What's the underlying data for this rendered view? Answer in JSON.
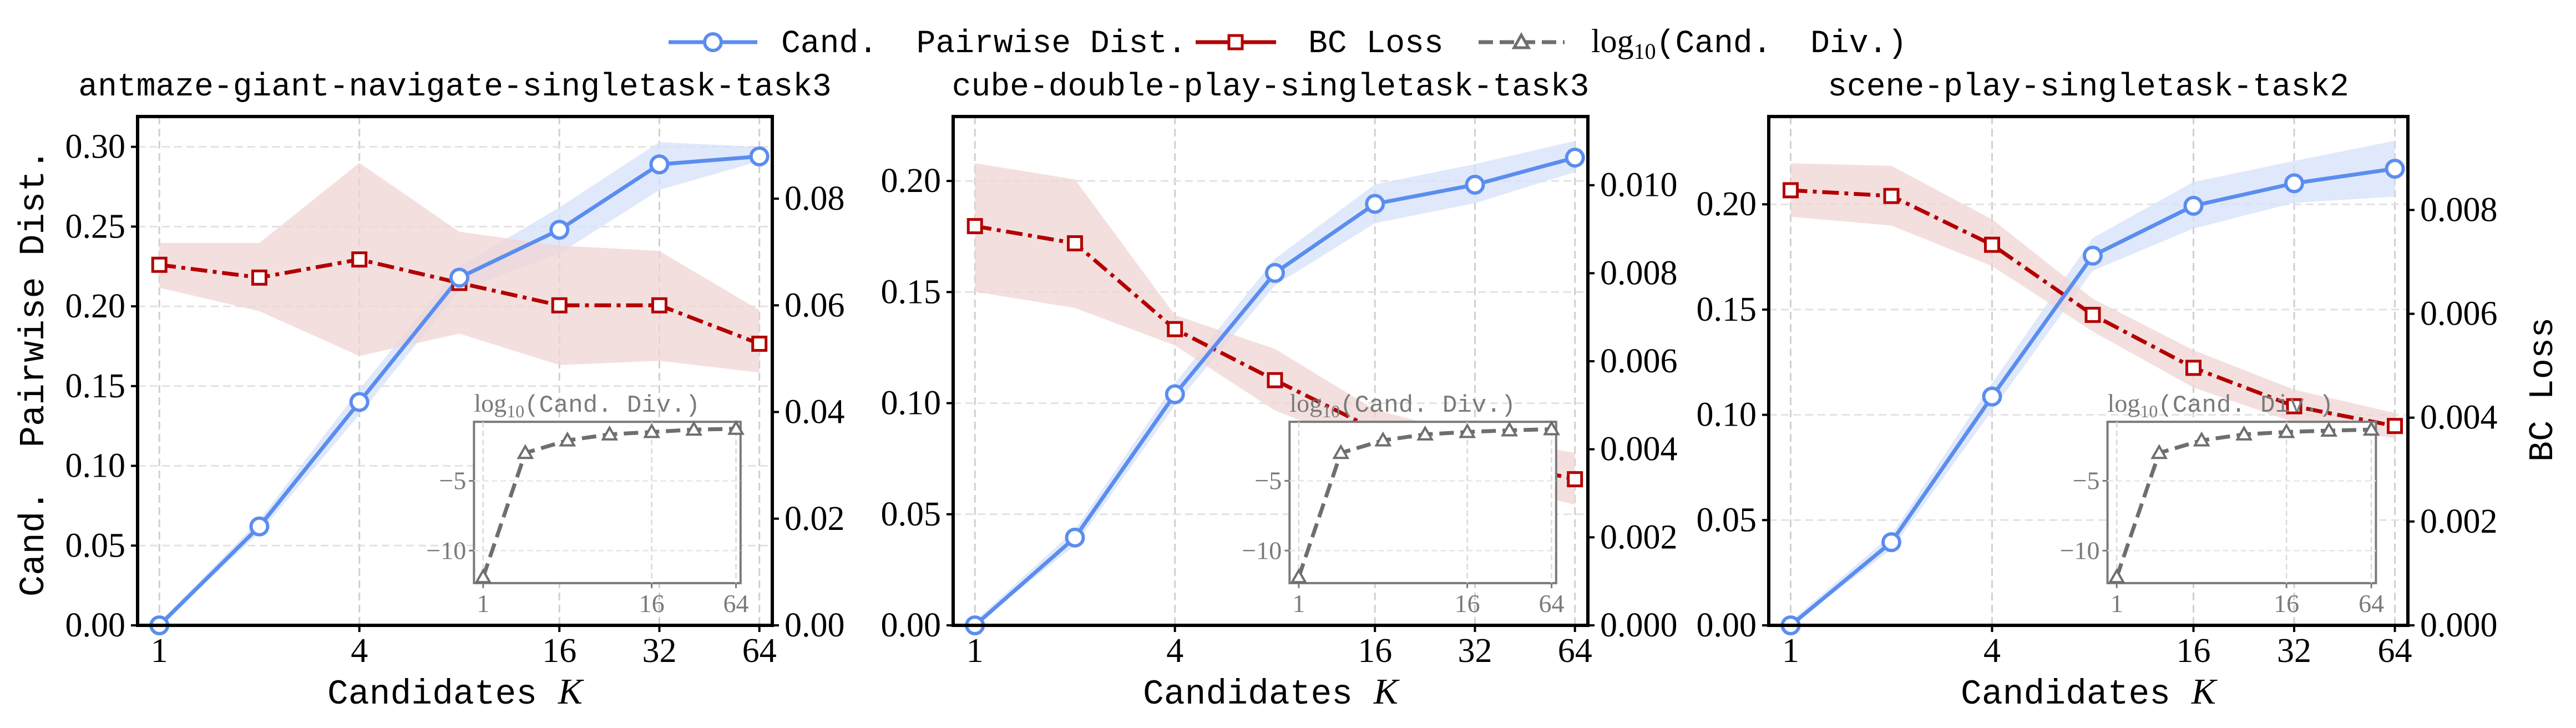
{
  "legend": {
    "placement": "top-center",
    "items": [
      {
        "label": "Cand.  Pairwise Dist.",
        "marker": "circle",
        "style": "solid"
      },
      {
        "label": "BC Loss",
        "marker": "square",
        "style": "dash-dot"
      },
      {
        "label_prefix": "log",
        "label_sub": "10",
        "label_rest": "(Cand.  Div.)",
        "marker": "triangle",
        "style": "dashed"
      }
    ]
  },
  "colors": {
    "pairwise": "#5b8def",
    "bc": "#b30000",
    "div": "#6e6e6e",
    "pairwise_band": "#d6e2f9",
    "bc_band": "#f0d4d4"
  },
  "ylabel_left": "Cand.  Pairwise Dist.",
  "ylabel_right": "BC Loss",
  "chart_data": [
    {
      "type": "line",
      "title": "antmaze-giant-navigate-singletask-task3",
      "xlabel_text": "Candidates",
      "xlabel_math": "K",
      "x": [
        1,
        2,
        4,
        8,
        16,
        32,
        64
      ],
      "xscale": "log2",
      "xticks": [
        1,
        4,
        16,
        32,
        64
      ],
      "xlim": [
        0.86,
        70
      ],
      "grid": true,
      "left_axis": {
        "ylim": [
          0,
          0.319
        ],
        "ticks": [
          "0.00",
          "0.05",
          "0.10",
          "0.15",
          "0.20",
          "0.25",
          "0.30"
        ]
      },
      "right_axis": {
        "ylim": [
          0,
          0.0954
        ],
        "ticks": [
          "0.00",
          "0.02",
          "0.04",
          "0.06",
          "0.08"
        ]
      },
      "series": [
        {
          "name": "Cand.  Pairwise Dist.",
          "axis": "left",
          "values": [
            0.0,
            0.062,
            0.14,
            0.218,
            0.248,
            0.289,
            0.294
          ],
          "lower": [
            0.0,
            0.058,
            0.132,
            0.21,
            0.233,
            0.273,
            0.291
          ],
          "upper": [
            0.002,
            0.066,
            0.148,
            0.225,
            0.262,
            0.303,
            0.3
          ]
        },
        {
          "name": "BC Loss",
          "axis": "right",
          "values": [
            0.0676,
            0.0652,
            0.0686,
            0.0642,
            0.06,
            0.06,
            0.0528
          ],
          "lower": [
            0.0633,
            0.0589,
            0.0505,
            0.0547,
            0.0488,
            0.0496,
            0.0474
          ],
          "upper": [
            0.0717,
            0.0717,
            0.0867,
            0.0738,
            0.0712,
            0.0702,
            0.0591
          ]
        }
      ],
      "inset": {
        "ylabel_prefix": "log",
        "ylabel_sub": "10",
        "ylabel_rest": "(Cand.  Div.)",
        "xticks": [
          1,
          16,
          64
        ],
        "xlim": [
          0.86,
          69
        ],
        "ylim": [
          -12.33,
          -0.77
        ],
        "yticks": [
          -5,
          -10
        ],
        "values": [
          -11.9,
          -3.0,
          -2.1,
          -1.67,
          -1.5,
          -1.33,
          -1.27
        ]
      }
    },
    {
      "type": "line",
      "title": "cube-double-play-singletask-task3",
      "xlabel_text": "Candidates",
      "xlabel_math": "K",
      "x": [
        1,
        2,
        4,
        8,
        16,
        32,
        64
      ],
      "xscale": "log2",
      "xticks": [
        1,
        4,
        16,
        32,
        64
      ],
      "xlim": [
        0.86,
        70
      ],
      "grid": true,
      "left_axis": {
        "ylim": [
          0,
          0.229
        ],
        "ticks": [
          "0.00",
          "0.05",
          "0.10",
          "0.15",
          "0.20"
        ]
      },
      "right_axis": {
        "ylim": [
          0,
          0.01156
        ],
        "ticks": [
          "0.000",
          "0.002",
          "0.004",
          "0.006",
          "0.008",
          "0.010"
        ]
      },
      "series": [
        {
          "name": "Cand.  Pairwise Dist.",
          "axis": "left",
          "values": [
            0.0,
            0.0395,
            0.104,
            0.1586,
            0.1897,
            0.1983,
            0.2105
          ],
          "lower": [
            0.0,
            0.036,
            0.099,
            0.153,
            0.181,
            0.19,
            0.204
          ],
          "upper": [
            0.002,
            0.043,
            0.109,
            0.165,
            0.1985,
            0.2076,
            0.218
          ]
        },
        {
          "name": "BC Loss",
          "axis": "right",
          "values": [
            0.00907,
            0.00868,
            0.00673,
            0.00557,
            0.00445,
            0.00382,
            0.00332
          ],
          "lower": [
            0.00758,
            0.00721,
            0.00636,
            0.00488,
            0.004,
            0.0033,
            0.00274
          ],
          "upper": [
            0.0105,
            0.01013,
            0.00705,
            0.00628,
            0.0049,
            0.0043,
            0.00392
          ]
        }
      ],
      "inset": {
        "ylabel_prefix": "log",
        "ylabel_sub": "10",
        "ylabel_rest": "(Cand.  Div.)",
        "xticks": [
          1,
          16,
          64
        ],
        "xlim": [
          0.86,
          69
        ],
        "ylim": [
          -12.33,
          -0.77
        ],
        "yticks": [
          -5,
          -10
        ],
        "values": [
          -11.9,
          -3.0,
          -2.1,
          -1.67,
          -1.5,
          -1.38,
          -1.3
        ]
      }
    },
    {
      "type": "line",
      "title": "scene-play-singletask-task2",
      "xlabel_text": "Candidates",
      "xlabel_math": "K",
      "x": [
        1,
        2,
        4,
        8,
        16,
        32,
        64
      ],
      "xscale": "log2",
      "xticks": [
        1,
        4,
        16,
        32,
        64
      ],
      "xlim": [
        0.86,
        70
      ],
      "grid": true,
      "left_axis": {
        "ylim": [
          0,
          0.2417
        ],
        "ticks": [
          "0.00",
          "0.05",
          "0.10",
          "0.15",
          "0.20"
        ]
      },
      "right_axis": {
        "ylim": [
          0,
          0.0098
        ],
        "ticks": [
          "0.000",
          "0.002",
          "0.004",
          "0.006",
          "0.008"
        ]
      },
      "series": [
        {
          "name": "Cand.  Pairwise Dist.",
          "axis": "left",
          "values": [
            0.0,
            0.0395,
            0.1087,
            0.1756,
            0.1993,
            0.21,
            0.2169
          ],
          "lower": [
            0.0,
            0.036,
            0.102,
            0.1685,
            0.1885,
            0.2007,
            0.2036
          ],
          "upper": [
            0.002,
            0.043,
            0.115,
            0.184,
            0.2106,
            0.2206,
            0.2302
          ]
        },
        {
          "name": "BC Loss",
          "axis": "right",
          "values": [
            0.00838,
            0.00827,
            0.00733,
            0.00598,
            0.00496,
            0.00422,
            0.00384
          ],
          "lower": [
            0.00787,
            0.0077,
            0.00692,
            0.00566,
            0.00458,
            0.00391,
            0.0036
          ],
          "upper": [
            0.0089,
            0.00885,
            0.00782,
            0.00629,
            0.0053,
            0.00454,
            0.00409
          ]
        }
      ],
      "inset": {
        "ylabel_prefix": "log",
        "ylabel_sub": "10",
        "ylabel_rest": "(Cand.  Div.)",
        "xticks": [
          1,
          16,
          64
        ],
        "xlim": [
          0.86,
          69
        ],
        "ylim": [
          -12.33,
          -0.77
        ],
        "yticks": [
          -5,
          -10
        ],
        "values": [
          -11.9,
          -3.0,
          -2.1,
          -1.67,
          -1.5,
          -1.4,
          -1.33
        ]
      }
    }
  ]
}
